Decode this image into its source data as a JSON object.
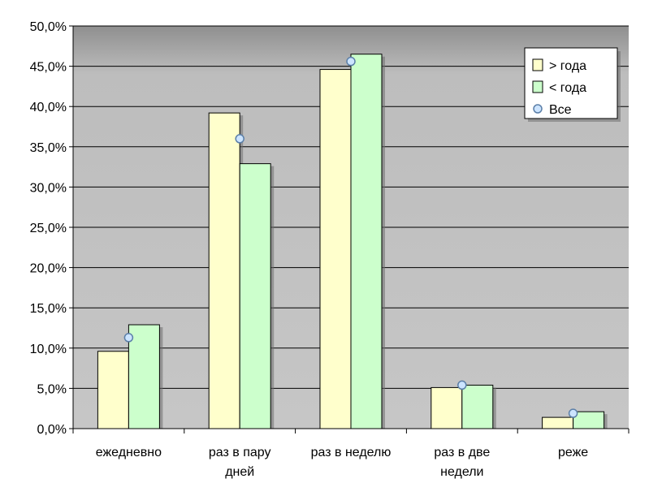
{
  "chart_data": {
    "type": "bar",
    "categories": [
      [
        "ежедневно"
      ],
      [
        "раз в пару",
        "дней"
      ],
      [
        "раз в неделю"
      ],
      [
        "раз в две",
        "недели"
      ],
      [
        "реже"
      ]
    ],
    "series": [
      {
        "name": "> года",
        "kind": "bar",
        "color": "#ffffcc",
        "values": [
          9.6,
          39.2,
          44.6,
          5.1,
          1.4
        ]
      },
      {
        "name": "< года",
        "kind": "bar",
        "color": "#ccffcc",
        "values": [
          12.9,
          32.9,
          46.5,
          5.4,
          2.1
        ]
      },
      {
        "name": "Все",
        "kind": "point",
        "color": "#cce4ff",
        "values": [
          11.3,
          36.0,
          45.6,
          5.4,
          1.9
        ]
      }
    ],
    "y_ticks": [
      "0,0%",
      "5,0%",
      "10,0%",
      "15,0%",
      "20,0%",
      "25,0%",
      "30,0%",
      "35,0%",
      "40,0%",
      "45,0%",
      "50,0%"
    ],
    "ylim": [
      0,
      50
    ],
    "ystep": 5,
    "grid": true,
    "legend_position": "top-right",
    "plot_background": "#c0c0c0"
  }
}
